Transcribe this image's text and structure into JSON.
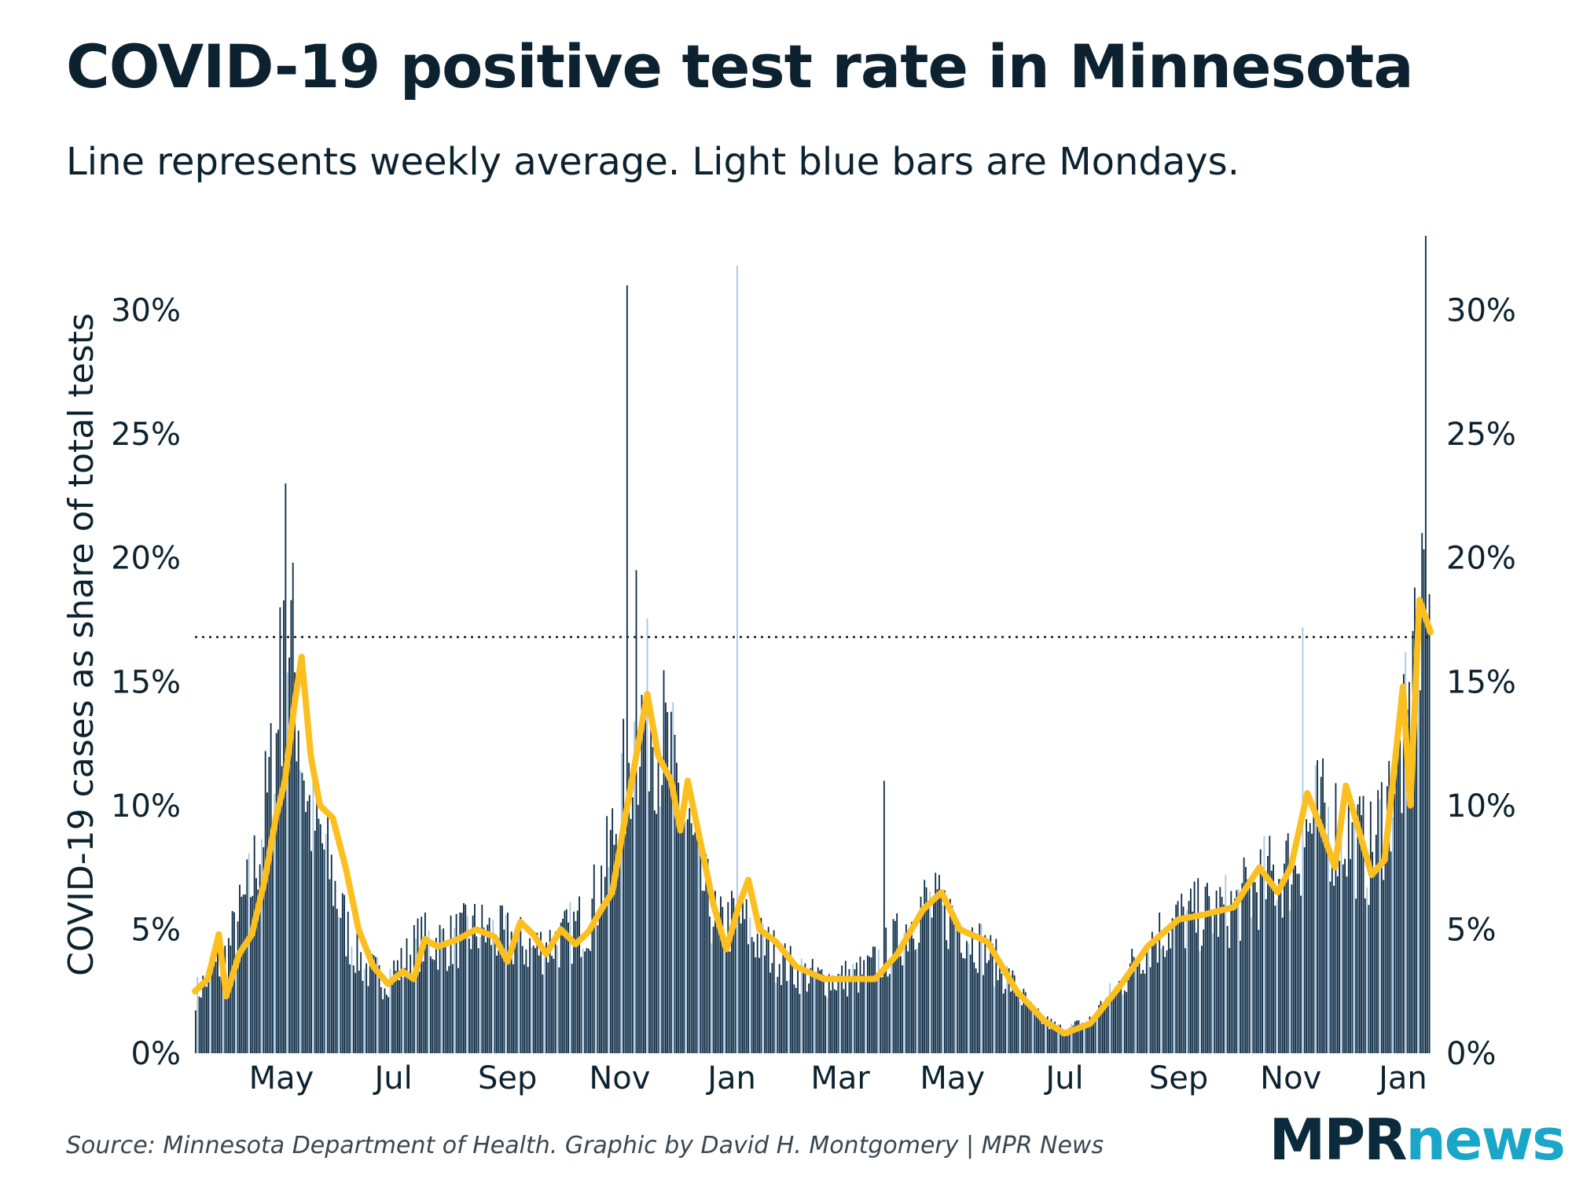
{
  "title": "COVID-19 positive test rate in Minnesota",
  "subtitle": "Line represents weekly average. Light blue bars are Mondays.",
  "source": "Source: Minnesota Department of Health. Graphic by David H. Montgomery | MPR News",
  "logo": {
    "mpr": "MPR",
    "news": "news"
  },
  "colors": {
    "bar": "#0b2a45",
    "monday_bar": "#a9c6e0",
    "line": "#fbbf1f",
    "text": "#0d2230"
  },
  "chart_data": {
    "type": "bar",
    "ylabel": "COVID-19 cases as share of total tests",
    "xlabel": "",
    "ylim": [
      0,
      33
    ],
    "y_ticks": [
      0,
      5,
      10,
      15,
      20,
      25,
      30
    ],
    "y_tick_labels": [
      "0%",
      "5%",
      "10%",
      "15%",
      "20%",
      "25%",
      "30%"
    ],
    "y_axis_both_sides": true,
    "reference_line": {
      "value": 16.8,
      "style": "dotted"
    },
    "x_tick_labels": [
      {
        "label": "May",
        "date": "2020-05-01"
      },
      {
        "label": "Jul",
        "date": "2020-07-01"
      },
      {
        "label": "Sep",
        "date": "2020-09-01"
      },
      {
        "label": "Nov",
        "date": "2020-11-01"
      },
      {
        "label": "Jan",
        "date": "2021-01-01"
      },
      {
        "label": "Mar",
        "date": "2021-03-01"
      },
      {
        "label": "May",
        "date": "2021-05-01"
      },
      {
        "label": "Jul",
        "date": "2021-07-01"
      },
      {
        "label": "Sep",
        "date": "2021-09-01"
      },
      {
        "label": "Nov",
        "date": "2021-11-01"
      },
      {
        "label": "Jan",
        "date": "2022-01-01"
      }
    ],
    "date_range": [
      "2020-03-15",
      "2022-01-16"
    ],
    "series": [
      {
        "kind": "bars",
        "points": [
          [
            "2020-03-15",
            2.4
          ],
          [
            "2020-04-01",
            4.0
          ],
          [
            "2020-04-15",
            7.0
          ],
          [
            "2020-04-25",
            11.0
          ],
          [
            "2020-05-01",
            14.0
          ],
          [
            "2020-05-05",
            17.5
          ],
          [
            "2020-05-15",
            10.0
          ],
          [
            "2020-05-25",
            8.0
          ],
          [
            "2020-06-05",
            5.0
          ],
          [
            "2020-06-15",
            3.5
          ],
          [
            "2020-06-25",
            3.0
          ],
          [
            "2020-07-05",
            3.5
          ],
          [
            "2020-07-15",
            4.5
          ],
          [
            "2020-08-01",
            4.5
          ],
          [
            "2020-08-15",
            5.0
          ],
          [
            "2020-09-01",
            4.6
          ],
          [
            "2020-09-15",
            4.2
          ],
          [
            "2020-10-01",
            4.6
          ],
          [
            "2020-10-15",
            5.5
          ],
          [
            "2020-10-25",
            7.5
          ],
          [
            "2020-11-01",
            10.0
          ],
          [
            "2020-11-10",
            13.0
          ],
          [
            "2020-11-18",
            14.0
          ],
          [
            "2020-11-25",
            12.5
          ],
          [
            "2020-12-05",
            10.0
          ],
          [
            "2020-12-15",
            7.0
          ],
          [
            "2020-12-25",
            5.0
          ],
          [
            "2021-01-05",
            5.5
          ],
          [
            "2021-01-15",
            4.6
          ],
          [
            "2021-02-01",
            3.5
          ],
          [
            "2021-02-15",
            3.0
          ],
          [
            "2021-03-01",
            3.0
          ],
          [
            "2021-03-15",
            3.2
          ],
          [
            "2021-04-01",
            4.5
          ],
          [
            "2021-04-15",
            6.0
          ],
          [
            "2021-05-01",
            5.5
          ],
          [
            "2021-05-15",
            4.5
          ],
          [
            "2021-06-01",
            3.0
          ],
          [
            "2021-06-15",
            1.5
          ],
          [
            "2021-07-01",
            0.9
          ],
          [
            "2021-07-15",
            1.3
          ],
          [
            "2021-08-01",
            2.8
          ],
          [
            "2021-08-15",
            4.4
          ],
          [
            "2021-09-01",
            5.3
          ],
          [
            "2021-09-15",
            5.6
          ],
          [
            "2021-10-01",
            5.8
          ],
          [
            "2021-10-15",
            6.8
          ],
          [
            "2021-11-01",
            7.5
          ],
          [
            "2021-11-15",
            9.5
          ],
          [
            "2021-12-01",
            9.0
          ],
          [
            "2021-12-15",
            8.0
          ],
          [
            "2022-01-01",
            12.0
          ],
          [
            "2022-01-10",
            15.0
          ],
          [
            "2022-01-16",
            17.0
          ]
        ],
        "spikes": [
          [
            "2020-05-03",
            23.0
          ],
          [
            "2020-04-30",
            18.0
          ],
          [
            "2020-11-05",
            31.0
          ],
          [
            "2020-11-10",
            19.5
          ],
          [
            "2021-01-04",
            31.8
          ],
          [
            "2021-03-25",
            11.0
          ],
          [
            "2021-11-08",
            17.2
          ],
          [
            "2022-01-14",
            33.0
          ],
          [
            "2022-01-12",
            21.0
          ],
          [
            "2022-01-08",
            18.8
          ]
        ]
      },
      {
        "kind": "line",
        "points": [
          [
            "2020-03-15",
            2.5
          ],
          [
            "2020-03-22",
            3.0
          ],
          [
            "2020-03-28",
            4.8
          ],
          [
            "2020-04-01",
            2.3
          ],
          [
            "2020-04-08",
            4.0
          ],
          [
            "2020-04-15",
            4.8
          ],
          [
            "2020-04-22",
            7.0
          ],
          [
            "2020-04-28",
            9.5
          ],
          [
            "2020-05-03",
            11.0
          ],
          [
            "2020-05-08",
            14.0
          ],
          [
            "2020-05-12",
            16.0
          ],
          [
            "2020-05-17",
            12.0
          ],
          [
            "2020-05-22",
            10.0
          ],
          [
            "2020-05-29",
            9.5
          ],
          [
            "2020-06-05",
            7.5
          ],
          [
            "2020-06-12",
            5.0
          ],
          [
            "2020-06-20",
            3.5
          ],
          [
            "2020-06-28",
            2.8
          ],
          [
            "2020-07-06",
            3.3
          ],
          [
            "2020-07-12",
            3.0
          ],
          [
            "2020-07-18",
            4.6
          ],
          [
            "2020-07-25",
            4.3
          ],
          [
            "2020-08-05",
            4.6
          ],
          [
            "2020-08-15",
            5.0
          ],
          [
            "2020-08-25",
            4.7
          ],
          [
            "2020-09-01",
            3.7
          ],
          [
            "2020-09-08",
            5.3
          ],
          [
            "2020-09-15",
            4.8
          ],
          [
            "2020-09-22",
            4.0
          ],
          [
            "2020-09-30",
            5.0
          ],
          [
            "2020-10-08",
            4.4
          ],
          [
            "2020-10-15",
            4.9
          ],
          [
            "2020-10-22",
            5.8
          ],
          [
            "2020-10-28",
            6.5
          ],
          [
            "2020-11-04",
            9.5
          ],
          [
            "2020-11-10",
            12.0
          ],
          [
            "2020-11-16",
            14.5
          ],
          [
            "2020-11-22",
            12.0
          ],
          [
            "2020-11-29",
            11.0
          ],
          [
            "2020-12-04",
            9.0
          ],
          [
            "2020-12-08",
            11.0
          ],
          [
            "2020-12-15",
            8.5
          ],
          [
            "2020-12-22",
            6.0
          ],
          [
            "2020-12-29",
            4.2
          ],
          [
            "2021-01-05",
            6.0
          ],
          [
            "2021-01-10",
            7.0
          ],
          [
            "2021-01-16",
            5.0
          ],
          [
            "2021-01-25",
            4.5
          ],
          [
            "2021-02-05",
            3.5
          ],
          [
            "2021-02-20",
            3.0
          ],
          [
            "2021-03-10",
            3.0
          ],
          [
            "2021-03-20",
            3.0
          ],
          [
            "2021-04-01",
            4.0
          ],
          [
            "2021-04-15",
            5.8
          ],
          [
            "2021-04-25",
            6.5
          ],
          [
            "2021-05-05",
            5.0
          ],
          [
            "2021-05-20",
            4.5
          ],
          [
            "2021-06-05",
            2.5
          ],
          [
            "2021-06-20",
            1.3
          ],
          [
            "2021-07-01",
            0.8
          ],
          [
            "2021-07-15",
            1.2
          ],
          [
            "2021-08-01",
            2.8
          ],
          [
            "2021-08-15",
            4.3
          ],
          [
            "2021-09-01",
            5.4
          ],
          [
            "2021-09-15",
            5.6
          ],
          [
            "2021-10-01",
            5.9
          ],
          [
            "2021-10-15",
            7.5
          ],
          [
            "2021-10-25",
            6.5
          ],
          [
            "2021-11-01",
            7.5
          ],
          [
            "2021-11-10",
            10.5
          ],
          [
            "2021-11-18",
            9.0
          ],
          [
            "2021-11-25",
            7.5
          ],
          [
            "2021-12-01",
            10.8
          ],
          [
            "2021-12-08",
            9.0
          ],
          [
            "2021-12-15",
            7.2
          ],
          [
            "2021-12-22",
            7.8
          ],
          [
            "2022-01-01",
            14.8
          ],
          [
            "2022-01-05",
            10.0
          ],
          [
            "2022-01-10",
            18.3
          ],
          [
            "2022-01-16",
            17.0
          ]
        ]
      }
    ]
  }
}
